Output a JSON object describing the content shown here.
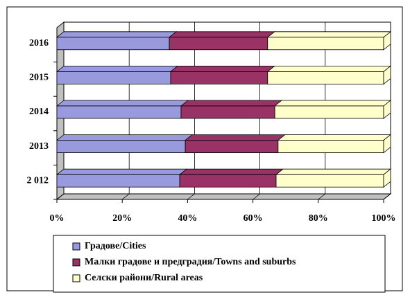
{
  "chart_data": {
    "type": "stacked_barh",
    "categories": [
      "2 012",
      "2013",
      "2014",
      "2015",
      "2016"
    ],
    "series": [
      {
        "name": "Градове/Cities",
        "color": "#9999dd",
        "values": [
          37.6,
          39.3,
          38.0,
          34.8,
          34.4
        ]
      },
      {
        "name": "Малки градове и предградия/Towns and suburbs",
        "color": "#993366",
        "values": [
          29.5,
          28.4,
          28.7,
          29.7,
          30.1
        ]
      },
      {
        "name": "Селски райони/Rural areas",
        "color": "#ffffcc",
        "values": [
          32.9,
          32.3,
          33.3,
          35.5,
          35.5
        ]
      }
    ],
    "xlim": [
      0,
      100
    ],
    "xticks": [
      {
        "value": 0,
        "label": "0%"
      },
      {
        "value": 20,
        "label": "20%"
      },
      {
        "value": 40,
        "label": "40%"
      },
      {
        "value": 60,
        "label": "60%"
      },
      {
        "value": 80,
        "label": "80%"
      },
      {
        "value": 100,
        "label": "100%"
      }
    ],
    "grid": true,
    "legend": "bottom"
  }
}
